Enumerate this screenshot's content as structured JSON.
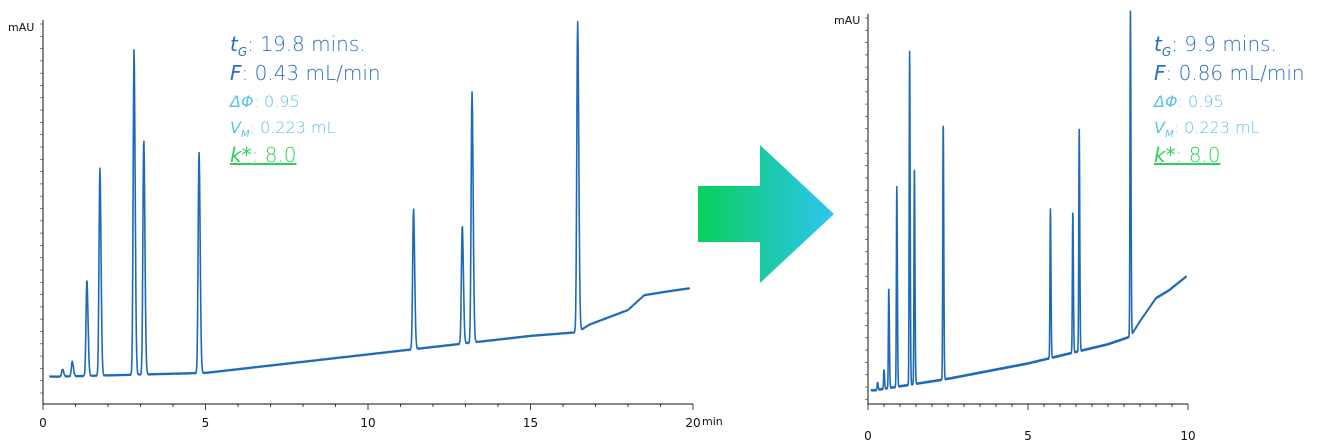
{
  "colors": {
    "trace": "#1f6ab8",
    "annotation_dark": "#2b6cc4",
    "annotation_light": "#5bc0eb",
    "annotation_green": "#2fcf5a",
    "arrow_start": "#08d05a",
    "arrow_end": "#2ec4f2"
  },
  "chart_data": [
    {
      "type": "line",
      "ylabel": "mAU",
      "xlabel": "min",
      "xlim": [
        0,
        20
      ],
      "x_ticks": [
        0,
        5,
        10,
        15,
        20
      ],
      "y_ticks_labeled": false,
      "grid": false,
      "annotations": {
        "tg": {
          "symbol": "t",
          "subscript": "G",
          "text": ": 19.8 mins."
        },
        "f": {
          "symbol": "F",
          "text": ": 0.43 mL/min"
        },
        "dphi": {
          "symbol": "ΔΦ",
          "text": ": 0.95"
        },
        "vm": {
          "symbol": "V",
          "subscript": "M",
          "text": ": 0.223 mL"
        },
        "k": {
          "symbol": "k*",
          "text": ": 8.0"
        }
      },
      "baseline": [
        [
          0.5,
          2
        ],
        [
          5,
          3
        ],
        [
          10,
          8
        ],
        [
          15,
          13
        ],
        [
          16.45,
          14
        ],
        [
          16.8,
          16
        ],
        [
          18,
          20
        ],
        [
          18.5,
          24
        ],
        [
          19.2,
          25
        ],
        [
          20,
          26
        ]
      ],
      "peaks": [
        {
          "t": 0.6,
          "h": 2
        },
        {
          "t": 0.9,
          "h": 4
        },
        {
          "t": 1.35,
          "h": 26
        },
        {
          "t": 1.75,
          "h": 56
        },
        {
          "t": 2.8,
          "h": 88
        },
        {
          "t": 3.1,
          "h": 64
        },
        {
          "t": 4.8,
          "h": 60
        },
        {
          "t": 11.4,
          "h": 38
        },
        {
          "t": 12.9,
          "h": 32
        },
        {
          "t": 13.2,
          "h": 68
        },
        {
          "t": 16.45,
          "h": 84
        }
      ]
    },
    {
      "type": "line",
      "ylabel": "mAU",
      "xlabel": "",
      "xlim": [
        0,
        10
      ],
      "x_ticks": [
        0,
        5,
        10
      ],
      "y_ticks_labeled": false,
      "grid": false,
      "annotations": {
        "tg": {
          "symbol": "t",
          "subscript": "G",
          "text": ": 9.9 mins."
        },
        "f": {
          "symbol": "F",
          "text": ": 0.86 mL/min"
        },
        "dphi": {
          "symbol": "ΔΦ",
          "text": ": 0.95"
        },
        "vm": {
          "symbol": "V",
          "subscript": "M",
          "text": ": 0.223 mL"
        },
        "k": {
          "symbol": "k*",
          "text": ": 8.0"
        }
      },
      "baseline": [
        [
          0.2,
          2
        ],
        [
          2.5,
          5
        ],
        [
          5,
          9
        ],
        [
          7.5,
          14
        ],
        [
          8.2,
          16
        ],
        [
          8.5,
          20
        ],
        [
          9,
          26
        ],
        [
          9.4,
          28
        ],
        [
          10,
          32
        ]
      ],
      "peaks": [
        {
          "t": 0.3,
          "h": 2
        },
        {
          "t": 0.5,
          "h": 5
        },
        {
          "t": 0.65,
          "h": 26
        },
        {
          "t": 0.9,
          "h": 52
        },
        {
          "t": 1.3,
          "h": 87
        },
        {
          "t": 1.45,
          "h": 56
        },
        {
          "t": 2.35,
          "h": 67
        },
        {
          "t": 5.7,
          "h": 39
        },
        {
          "t": 6.4,
          "h": 37
        },
        {
          "t": 6.6,
          "h": 58
        },
        {
          "t": 8.2,
          "h": 85
        }
      ]
    }
  ]
}
